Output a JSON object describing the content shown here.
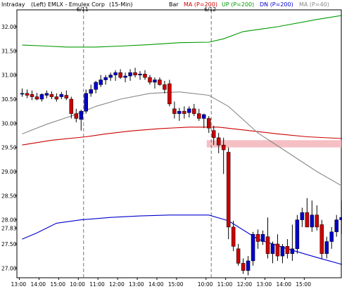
{
  "header": {
    "interval": "Intraday",
    "axis_side": "(Left)",
    "symbol": "EMLX - Emulex Corp",
    "period": "(15-Min)",
    "legend": [
      {
        "label": "Bar",
        "color": "#000000"
      },
      {
        "label": "MA (P=200)",
        "color": "#cc0000"
      },
      {
        "label": "UP (P=200)",
        "color": "#009900"
      },
      {
        "label": "DN (P=200)",
        "color": "#0000cc"
      },
      {
        "label": "MA (P=40)",
        "color": "#888888"
      }
    ]
  },
  "chart_data": {
    "type": "candlestick",
    "title": "EMLX - Emulex Corp",
    "ylim": [
      26.8,
      32.35
    ],
    "y_ticks": [
      "32.00",
      "31.50",
      "31.00",
      "30.50",
      "30.00",
      "29.50",
      "29.00",
      "28.50",
      "28.00",
      "27.83",
      "27.50",
      "27.00"
    ],
    "x_ticks": [
      "13:00",
      "14:00",
      "15:00",
      "10:00",
      "11:00",
      "12:00",
      "13:00",
      "14:00",
      "15:00",
      "10:00",
      "11:00",
      "12:00",
      "13:00",
      "14:00",
      "15:00"
    ],
    "day_markers": [
      {
        "label": "6/11",
        "index": 13
      },
      {
        "label": "6/12",
        "index": 39
      }
    ],
    "last_price_label": "27.83",
    "highlight_band": [
      29.5,
      29.65
    ],
    "candles": [
      [
        30.62,
        30.72,
        30.55,
        30.62
      ],
      [
        30.62,
        30.7,
        30.52,
        30.58
      ],
      [
        30.6,
        30.68,
        30.48,
        30.55
      ],
      [
        30.55,
        30.63,
        30.48,
        30.5
      ],
      [
        30.5,
        30.62,
        30.45,
        30.6
      ],
      [
        30.58,
        30.68,
        30.52,
        30.62
      ],
      [
        30.6,
        30.66,
        30.5,
        30.55
      ],
      [
        30.55,
        30.62,
        30.45,
        30.5
      ],
      [
        30.55,
        30.65,
        30.5,
        30.6
      ],
      [
        30.58,
        30.68,
        30.48,
        30.52
      ],
      [
        30.5,
        30.55,
        30.1,
        30.2
      ],
      [
        30.2,
        30.3,
        30.02,
        30.1
      ],
      [
        30.08,
        30.28,
        29.85,
        30.25
      ],
      [
        30.25,
        30.7,
        30.2,
        30.62
      ],
      [
        30.62,
        30.8,
        30.55,
        30.7
      ],
      [
        30.7,
        30.88,
        30.62,
        30.85
      ],
      [
        30.8,
        31.0,
        30.75,
        30.9
      ],
      [
        30.9,
        31.0,
        30.8,
        30.95
      ],
      [
        30.95,
        31.05,
        30.88,
        31.0
      ],
      [
        31.0,
        31.1,
        30.88,
        31.05
      ],
      [
        31.05,
        31.12,
        30.92,
        30.95
      ],
      [
        30.95,
        31.05,
        30.85,
        30.98
      ],
      [
        30.98,
        31.12,
        30.88,
        31.05
      ],
      [
        31.05,
        31.15,
        30.95,
        31.0
      ],
      [
        31.0,
        31.08,
        30.9,
        31.02
      ],
      [
        31.02,
        31.1,
        30.9,
        30.95
      ],
      [
        30.95,
        31.0,
        30.8,
        30.85
      ],
      [
        30.85,
        30.95,
        30.72,
        30.9
      ],
      [
        30.9,
        30.95,
        30.78,
        30.8
      ],
      [
        30.8,
        30.88,
        30.62,
        30.7
      ],
      [
        30.82,
        30.9,
        30.35,
        30.4
      ],
      [
        30.3,
        30.45,
        30.1,
        30.2
      ],
      [
        30.2,
        30.32,
        30.05,
        30.25
      ],
      [
        30.25,
        30.35,
        30.1,
        30.2
      ],
      [
        30.22,
        30.35,
        30.12,
        30.3
      ],
      [
        30.3,
        30.4,
        30.15,
        30.2
      ],
      [
        30.2,
        30.3,
        30.05,
        30.1
      ],
      [
        30.1,
        30.2,
        29.9,
        30.18
      ],
      [
        30.1,
        30.15,
        29.8,
        29.9
      ],
      [
        29.85,
        29.95,
        29.55,
        29.7
      ],
      [
        29.7,
        29.8,
        29.38,
        29.55
      ],
      [
        29.55,
        29.7,
        28.95,
        29.45
      ],
      [
        29.4,
        29.5,
        27.6,
        27.85
      ],
      [
        27.85,
        27.98,
        27.35,
        27.45
      ],
      [
        27.4,
        27.5,
        27.05,
        27.1
      ],
      [
        27.1,
        27.2,
        26.88,
        26.95
      ],
      [
        26.95,
        27.25,
        26.85,
        27.15
      ],
      [
        27.15,
        27.75,
        27.05,
        27.7
      ],
      [
        27.7,
        27.8,
        27.4,
        27.55
      ],
      [
        27.55,
        27.78,
        27.48,
        27.7
      ],
      [
        27.65,
        28.05,
        27.2,
        27.3
      ],
      [
        27.3,
        27.55,
        27.1,
        27.5
      ],
      [
        27.5,
        27.7,
        27.15,
        27.25
      ],
      [
        27.25,
        27.5,
        27.1,
        27.45
      ],
      [
        27.45,
        27.6,
        27.2,
        27.3
      ],
      [
        27.3,
        27.9,
        27.15,
        27.4
      ],
      [
        27.4,
        28.1,
        27.3,
        28.0
      ],
      [
        28.0,
        28.25,
        27.85,
        28.15
      ],
      [
        28.15,
        28.45,
        27.85,
        27.85
      ],
      [
        27.85,
        28.4,
        27.75,
        28.1
      ],
      [
        28.1,
        28.3,
        27.78,
        27.85
      ],
      [
        27.9,
        28.0,
        27.2,
        27.3
      ],
      [
        27.3,
        27.65,
        27.2,
        27.55
      ],
      [
        27.55,
        27.85,
        27.4,
        27.75
      ],
      [
        27.75,
        28.1,
        27.65,
        28.0
      ],
      [
        28.0,
        28.4,
        27.7,
        28.05
      ],
      [
        28.05,
        28.2,
        27.78,
        27.83
      ]
    ],
    "series": [
      {
        "name": "MA (P=200)",
        "color": "#cc0000",
        "values": [
          [
            0,
            29.55
          ],
          [
            6,
            29.65
          ],
          [
            13,
            29.72
          ],
          [
            17,
            29.78
          ],
          [
            22,
            29.84
          ],
          [
            28,
            29.89
          ],
          [
            34,
            29.92
          ],
          [
            40,
            29.92
          ],
          [
            46,
            29.85
          ],
          [
            52,
            29.78
          ],
          [
            58,
            29.72
          ],
          [
            66,
            29.68
          ]
        ]
      },
      {
        "name": "UP (P=200)",
        "color": "#009900",
        "values": [
          [
            0,
            31.62
          ],
          [
            5,
            31.6
          ],
          [
            9,
            31.58
          ],
          [
            15,
            31.58
          ],
          [
            20,
            31.6
          ],
          [
            26,
            31.63
          ],
          [
            32,
            31.67
          ],
          [
            38,
            31.68
          ],
          [
            41,
            31.75
          ],
          [
            45,
            31.9
          ],
          [
            52,
            32.0
          ],
          [
            60,
            32.15
          ],
          [
            66,
            32.25
          ]
        ]
      },
      {
        "name": "DN (P=200)",
        "color": "#0000cc",
        "values": [
          [
            0,
            27.6
          ],
          [
            3,
            27.73
          ],
          [
            7,
            27.93
          ],
          [
            12,
            28.0
          ],
          [
            18,
            28.05
          ],
          [
            24,
            28.08
          ],
          [
            30,
            28.1
          ],
          [
            38,
            28.1
          ],
          [
            42,
            27.98
          ],
          [
            48,
            27.6
          ],
          [
            54,
            27.4
          ],
          [
            60,
            27.22
          ],
          [
            66,
            27.05
          ]
        ]
      },
      {
        "name": "MA (P=40)",
        "color": "#888888",
        "values": [
          [
            0,
            29.78
          ],
          [
            5,
            29.98
          ],
          [
            10,
            30.15
          ],
          [
            15,
            30.35
          ],
          [
            20,
            30.5
          ],
          [
            26,
            30.62
          ],
          [
            32,
            30.65
          ],
          [
            38,
            30.58
          ],
          [
            42,
            30.35
          ],
          [
            48,
            29.8
          ],
          [
            54,
            29.4
          ],
          [
            60,
            29.0
          ],
          [
            66,
            28.65
          ]
        ]
      }
    ]
  }
}
